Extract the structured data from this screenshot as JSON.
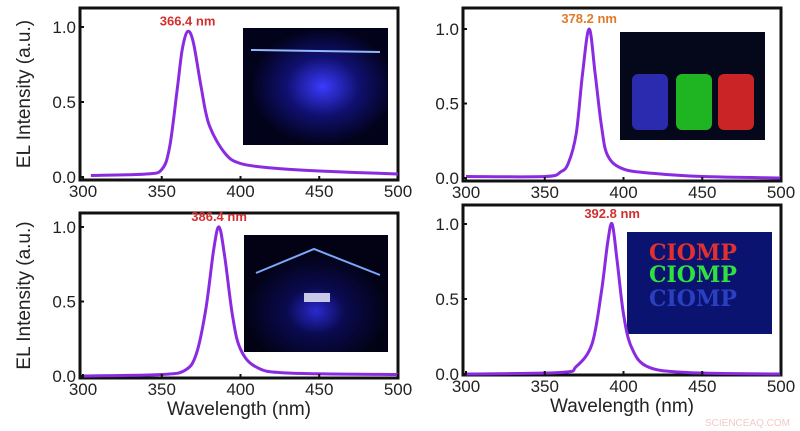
{
  "watermark": "SCIENCEAQ.COM",
  "colors": {
    "line": "#8a2be2",
    "peak_label_red": "#d32f2f",
    "peak_label_orange": "#e07a2a"
  },
  "chart_data": [
    {
      "type": "line",
      "peak_label": "366.4 nm",
      "xlabel": "",
      "ylabel": "EL Intensity (a.u.)",
      "xlim": [
        300,
        500
      ],
      "ylim": [
        0,
        1.1
      ],
      "xticks": [
        "300",
        "350",
        "400",
        "450",
        "500"
      ],
      "yticks": [
        "0.0",
        "0.5",
        "1.0"
      ],
      "grid": false,
      "inset": "photo: blue emission from device",
      "x": [
        305,
        340,
        350,
        355,
        360,
        363,
        366.4,
        370,
        375,
        380,
        390,
        400,
        420,
        450,
        500
      ],
      "y": [
        0.01,
        0.02,
        0.05,
        0.2,
        0.6,
        0.85,
        0.97,
        0.9,
        0.6,
        0.35,
        0.16,
        0.09,
        0.06,
        0.04,
        0.02
      ]
    },
    {
      "type": "line",
      "peak_label": "378.2 nm",
      "xlabel": "",
      "ylabel": "",
      "xlim": [
        300,
        500
      ],
      "ylim": [
        0,
        1.1
      ],
      "xticks": [
        "300",
        "350",
        "400",
        "450",
        "500"
      ],
      "yticks": [
        "0.0",
        "0.5",
        "1.0"
      ],
      "grid": false,
      "inset": "photo: blue, green, red vials",
      "x": [
        300,
        350,
        360,
        365,
        370,
        374,
        378.2,
        382,
        386,
        390,
        400,
        420,
        450,
        500
      ],
      "y": [
        0.01,
        0.01,
        0.04,
        0.1,
        0.3,
        0.7,
        1.0,
        0.7,
        0.35,
        0.15,
        0.06,
        0.03,
        0.01,
        0.0
      ]
    },
    {
      "type": "line",
      "peak_label": "386.4 nm",
      "xlabel": "Wavelength (nm)",
      "ylabel": "EL Intensity (a.u.)",
      "xlim": [
        300,
        500
      ],
      "ylim": [
        0,
        1.1
      ],
      "xticks": [
        "300",
        "350",
        "400",
        "450",
        "500"
      ],
      "yticks": [
        "0.0",
        "0.5",
        "1.0"
      ],
      "grid": false,
      "inset": "photo: device emission",
      "x": [
        300,
        350,
        365,
        372,
        378,
        383,
        386.4,
        390,
        395,
        400,
        410,
        430,
        500
      ],
      "y": [
        0.0,
        0.01,
        0.04,
        0.15,
        0.45,
        0.85,
        1.0,
        0.8,
        0.4,
        0.18,
        0.06,
        0.02,
        0.01
      ]
    },
    {
      "type": "line",
      "peak_label": "392.8 nm",
      "xlabel": "Wavelength (nm)",
      "ylabel": "",
      "xlim": [
        300,
        500
      ],
      "ylim": [
        0,
        1.1
      ],
      "xticks": [
        "300",
        "350",
        "400",
        "450",
        "500"
      ],
      "yticks": [
        "0.0",
        "0.5",
        "1.0"
      ],
      "grid": false,
      "inset": "photo: CIOMP letters in red, green, blue",
      "inset_text": "CIOMP",
      "x": [
        300,
        360,
        370,
        380,
        386,
        390,
        392.8,
        396,
        400,
        405,
        415,
        440,
        500
      ],
      "y": [
        0.0,
        0.01,
        0.05,
        0.2,
        0.55,
        0.88,
        1.0,
        0.75,
        0.4,
        0.18,
        0.05,
        0.01,
        0.0
      ]
    }
  ]
}
